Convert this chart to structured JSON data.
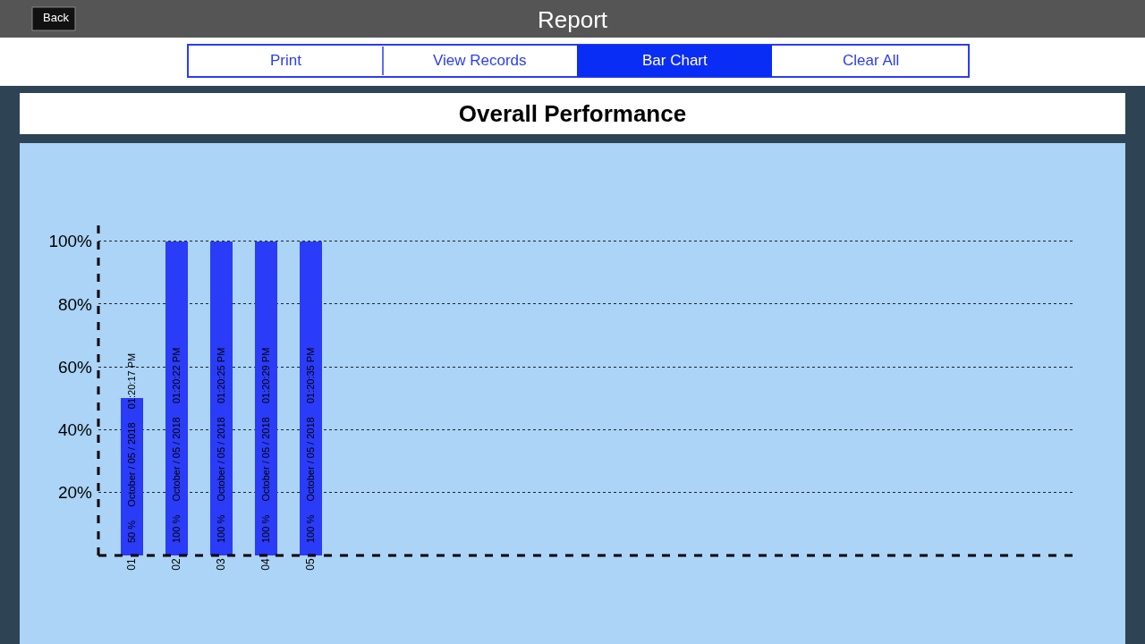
{
  "chart_data": {
    "type": "bar",
    "title": "Overall Performance",
    "annotations": [
      "Back",
      "Report",
      "Print",
      "View Records",
      "Bar Chart",
      "Clear All"
    ],
    "categories": [
      "01",
      "02",
      "03",
      "04",
      "05",
      null,
      null,
      null,
      null,
      null,
      null,
      null,
      null,
      null,
      null,
      null,
      null,
      null,
      null,
      null,
      null
    ],
    "values": [
      50,
      100,
      100,
      100,
      100,
      null,
      null,
      null,
      null,
      null,
      null,
      null,
      null,
      null,
      null,
      null,
      null,
      null,
      null,
      null,
      null
    ],
    "color": "#2a3cf7",
    "value_labels": [
      "50 %     October / 05 / 2018     01:20:17 PM",
      "100 %     October / 05 / 2018     01:20:22 PM",
      "100 %     October / 05 / 2018     01:20:25 PM",
      "100 %     October / 05 / 2018     01:20:29 PM",
      "100 %     October / 05 / 2018     01:20:35 PM",
      null,
      null,
      null,
      null,
      null,
      null,
      null,
      null,
      null,
      null,
      null,
      null,
      null,
      null,
      null,
      null
    ],
    "ylim": [
      0,
      105
    ],
    "yticks": [
      {
        "value": 20,
        "label": "20%"
      },
      {
        "value": 40,
        "label": "40%"
      },
      {
        "value": 60,
        "label": "60%"
      },
      {
        "value": 80,
        "label": "80%"
      },
      {
        "value": 100,
        "label": "100%"
      }
    ],
    "grid": "y",
    "legend": false
  }
}
